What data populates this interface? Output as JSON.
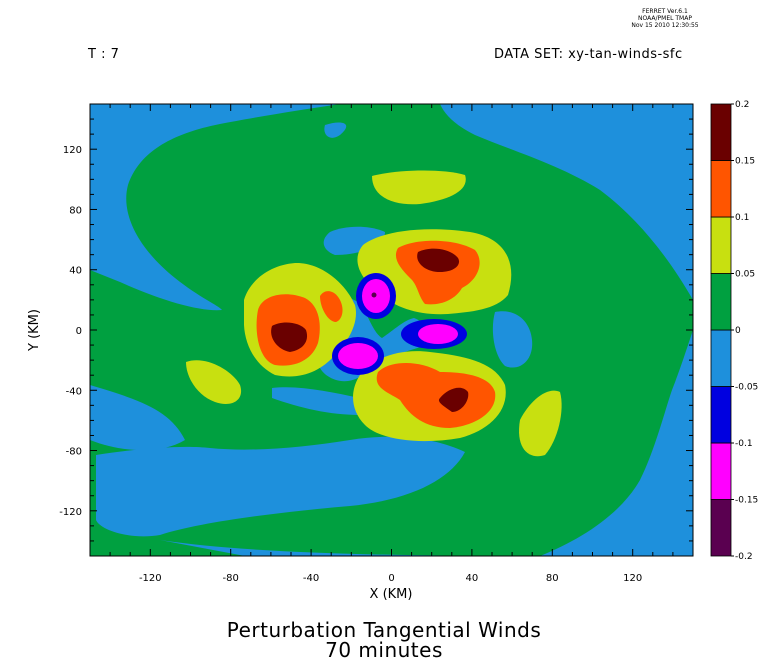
{
  "stamp": {
    "line1": "FERRET  Ver.6.1",
    "line2": "NOAA/PMEL TMAP",
    "line3": "Nov 15 2010 12:30:55"
  },
  "header": {
    "time": "T : 7",
    "dataset": "DATA SET: xy-tan-winds-sfc"
  },
  "titles": {
    "line1": "Perturbation Tangential Winds",
    "line2": "70 minutes"
  },
  "chart_data": {
    "type": "heatmap",
    "title": "Perturbation Tangential Winds",
    "subtitle": "70 minutes",
    "xlabel": "X (KM)",
    "ylabel": "Y (KM)",
    "xlim": [
      -150,
      150
    ],
    "ylim": [
      -150,
      150
    ],
    "xticks": [
      -120,
      -80,
      -40,
      0,
      40,
      80,
      120
    ],
    "yticks": [
      -120,
      -80,
      -40,
      0,
      40,
      80,
      120
    ],
    "xtick_labels": [
      "-120",
      "-80",
      "-40",
      "0",
      "40",
      "80",
      "120"
    ],
    "ytick_labels": [
      "-120",
      "-80",
      "-40",
      "0",
      "40",
      "80",
      "120"
    ],
    "colorbar": {
      "levels": [
        -0.2,
        -0.15,
        -0.1,
        -0.05,
        0,
        0.05,
        0.1,
        0.15,
        0.2
      ],
      "labels": [
        "-0.2",
        "-0.15",
        "-0.1",
        "-0.05",
        "0",
        "0.05",
        "0.1",
        "0.15",
        "0.2"
      ],
      "colors": [
        "#5a0050",
        "#ff00ff",
        "#0000e0",
        "#1e90dc",
        "#00a040",
        "#c8e010",
        "#ff5500",
        "#6a0000"
      ]
    },
    "features": [
      {
        "band": 7,
        "center": [
          -52,
          0
        ],
        "radius": [
          8,
          7
        ]
      },
      {
        "band": 7,
        "center": [
          22,
          48
        ],
        "radius": [
          10,
          6
        ]
      },
      {
        "band": 7,
        "center": [
          32,
          -43
        ],
        "radius": [
          8,
          7
        ]
      },
      {
        "band": 0,
        "center": [
          -8,
          22
        ],
        "radius": [
          1.5,
          1.5
        ]
      },
      {
        "band": 1,
        "center": [
          -8,
          22
        ],
        "radius": [
          7,
          11
        ]
      },
      {
        "band": 1,
        "center": [
          -17,
          -12
        ],
        "radius": [
          12,
          8
        ]
      },
      {
        "band": 1,
        "center": [
          23,
          -3
        ],
        "radius": [
          11,
          6
        ]
      },
      {
        "band": 2,
        "center": [
          -8,
          22
        ],
        "radius": [
          10,
          14
        ]
      },
      {
        "band": 2,
        "center": [
          -17,
          -12
        ],
        "radius": [
          16,
          10
        ]
      },
      {
        "band": 2,
        "center": [
          23,
          -3
        ],
        "radius": [
          15,
          9
        ]
      }
    ]
  }
}
